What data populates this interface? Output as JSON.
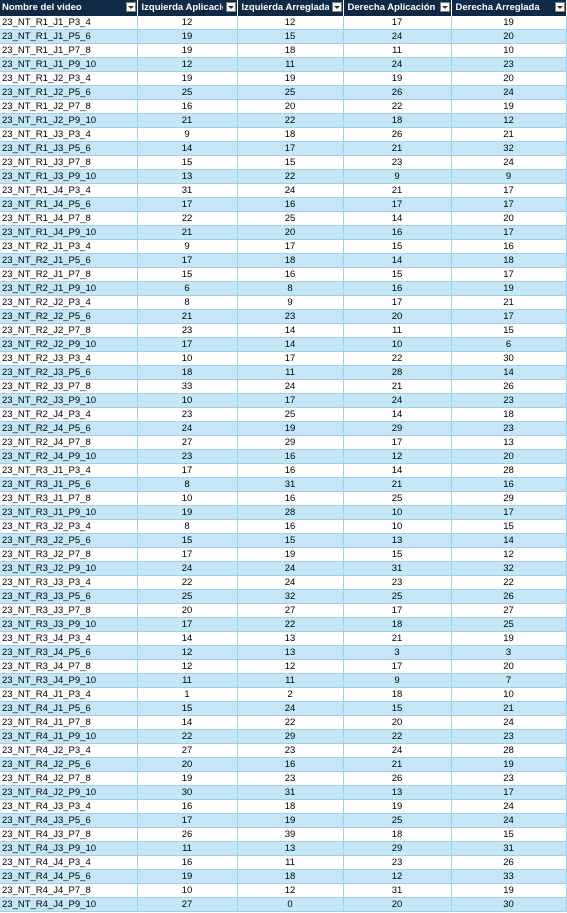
{
  "columns": [
    "Nombre del video",
    "Izquierda Aplicació",
    "Izquierda Arreglada",
    "Derecha Aplicación",
    "Derecha Arreglada"
  ],
  "rows": [
    [
      "23_NT_R1_J1_P3_4",
      "12",
      "12",
      "17",
      "19"
    ],
    [
      "23_NT_R1_J1_P5_6",
      "19",
      "15",
      "24",
      "20"
    ],
    [
      "23_NT_R1_J1_P7_8",
      "19",
      "18",
      "11",
      "10"
    ],
    [
      "23_NT_R1_J1_P9_10",
      "12",
      "11",
      "24",
      "23"
    ],
    [
      "23_NT_R1_J2_P3_4",
      "19",
      "19",
      "19",
      "20"
    ],
    [
      "23_NT_R1_J2_P5_6",
      "25",
      "25",
      "26",
      "24"
    ],
    [
      "23_NT_R1_J2_P7_8",
      "16",
      "20",
      "22",
      "19"
    ],
    [
      "23_NT_R1_J2_P9_10",
      "21",
      "22",
      "18",
      "12"
    ],
    [
      "23_NT_R1_J3_P3_4",
      "9",
      "18",
      "26",
      "21"
    ],
    [
      "23_NT_R1_J3_P5_6",
      "14",
      "17",
      "21",
      "32"
    ],
    [
      "23_NT_R1_J3_P7_8",
      "15",
      "15",
      "23",
      "24"
    ],
    [
      "23_NT_R1_J3_P9_10",
      "13",
      "22",
      "9",
      "9"
    ],
    [
      "23_NT_R1_J4_P3_4",
      "31",
      "24",
      "21",
      "17"
    ],
    [
      "23_NT_R1_J4_P5_6",
      "17",
      "16",
      "17",
      "17"
    ],
    [
      "23_NT_R1_J4_P7_8",
      "22",
      "25",
      "14",
      "20"
    ],
    [
      "23_NT_R1_J4_P9_10",
      "21",
      "20",
      "16",
      "17"
    ],
    [
      "23_NT_R2_J1_P3_4",
      "9",
      "17",
      "15",
      "16"
    ],
    [
      "23_NT_R2_J1_P5_6",
      "17",
      "18",
      "14",
      "18"
    ],
    [
      "23_NT_R2_J1_P7_8",
      "15",
      "16",
      "15",
      "17"
    ],
    [
      "23_NT_R2_J1_P9_10",
      "6",
      "8",
      "16",
      "19"
    ],
    [
      "23_NT_R2_J2_P3_4",
      "8",
      "9",
      "17",
      "21"
    ],
    [
      "23_NT_R2_J2_P5_6",
      "21",
      "23",
      "20",
      "17"
    ],
    [
      "23_NT_R2_J2_P7_8",
      "23",
      "14",
      "11",
      "15"
    ],
    [
      "23_NT_R2_J2_P9_10",
      "17",
      "14",
      "10",
      "6"
    ],
    [
      "23_NT_R2_J3_P3_4",
      "10",
      "17",
      "22",
      "30"
    ],
    [
      "23_NT_R2_J3_P5_6",
      "18",
      "11",
      "28",
      "14"
    ],
    [
      "23_NT_R2_J3_P7_8",
      "33",
      "24",
      "21",
      "26"
    ],
    [
      "23_NT_R2_J3_P9_10",
      "10",
      "17",
      "24",
      "23"
    ],
    [
      "23_NT_R2_J4_P3_4",
      "23",
      "25",
      "14",
      "18"
    ],
    [
      "23_NT_R2_J4_P5_6",
      "24",
      "19",
      "29",
      "23"
    ],
    [
      "23_NT_R2_J4_P7_8",
      "27",
      "29",
      "17",
      "13"
    ],
    [
      "23_NT_R2_J4_P9_10",
      "23",
      "16",
      "12",
      "20"
    ],
    [
      "23_NT_R3_J1_P3_4",
      "17",
      "16",
      "14",
      "28"
    ],
    [
      "23_NT_R3_J1_P5_6",
      "8",
      "31",
      "21",
      "16"
    ],
    [
      "23_NT_R3_J1_P7_8",
      "10",
      "16",
      "25",
      "29"
    ],
    [
      "23_NT_R3_J1_P9_10",
      "19",
      "28",
      "10",
      "17"
    ],
    [
      "23_NT_R3_J2_P3_4",
      "8",
      "16",
      "10",
      "15"
    ],
    [
      "23_NT_R3_J2_P5_6",
      "15",
      "15",
      "13",
      "14"
    ],
    [
      "23_NT_R3_J2_P7_8",
      "17",
      "19",
      "15",
      "12"
    ],
    [
      "23_NT_R3_J2_P9_10",
      "24",
      "24",
      "31",
      "32"
    ],
    [
      "23_NT_R3_J3_P3_4",
      "22",
      "24",
      "23",
      "22"
    ],
    [
      "23_NT_R3_J3_P5_6",
      "25",
      "32",
      "25",
      "26"
    ],
    [
      "23_NT_R3_J3_P7_8",
      "20",
      "27",
      "17",
      "27"
    ],
    [
      "23_NT_R3_J3_P9_10",
      "17",
      "22",
      "18",
      "25"
    ],
    [
      "23_NT_R3_J4_P3_4",
      "14",
      "13",
      "21",
      "19"
    ],
    [
      "23_NT_R3_J4_P5_6",
      "12",
      "13",
      "3",
      "3"
    ],
    [
      "23_NT_R3_J4_P7_8",
      "12",
      "12",
      "17",
      "20"
    ],
    [
      "23_NT_R3_J4_P9_10",
      "11",
      "11",
      "9",
      "7"
    ],
    [
      "23_NT_R4_J1_P3_4",
      "1",
      "2",
      "18",
      "10"
    ],
    [
      "23_NT_R4_J1_P5_6",
      "15",
      "24",
      "15",
      "21"
    ],
    [
      "23_NT_R4_J1_P7_8",
      "14",
      "22",
      "20",
      "24"
    ],
    [
      "23_NT_R4_J1_P9_10",
      "22",
      "29",
      "22",
      "23"
    ],
    [
      "23_NT_R4_J2_P3_4",
      "27",
      "23",
      "24",
      "28"
    ],
    [
      "23_NT_R4_J2_P5_6",
      "20",
      "16",
      "21",
      "19"
    ],
    [
      "23_NT_R4_J2_P7_8",
      "19",
      "23",
      "26",
      "23"
    ],
    [
      "23_NT_R4_J2_P9_10",
      "30",
      "31",
      "13",
      "17"
    ],
    [
      "23_NT_R4_J3_P3_4",
      "16",
      "18",
      "19",
      "24"
    ],
    [
      "23_NT_R4_J3_P5_6",
      "17",
      "19",
      "25",
      "24"
    ],
    [
      "23_NT_R4_J3_P7_8",
      "26",
      "39",
      "18",
      "15"
    ],
    [
      "23_NT_R4_J3_P9_10",
      "11",
      "13",
      "29",
      "31"
    ],
    [
      "23_NT_R4_J4_P3_4",
      "16",
      "11",
      "23",
      "26"
    ],
    [
      "23_NT_R4_J4_P5_6",
      "19",
      "18",
      "12",
      "33"
    ],
    [
      "23_NT_R4_J4_P7_8",
      "10",
      "12",
      "31",
      "19"
    ],
    [
      "23_NT_R4_J4_P9_10",
      "27",
      "0",
      "20",
      "30"
    ]
  ]
}
